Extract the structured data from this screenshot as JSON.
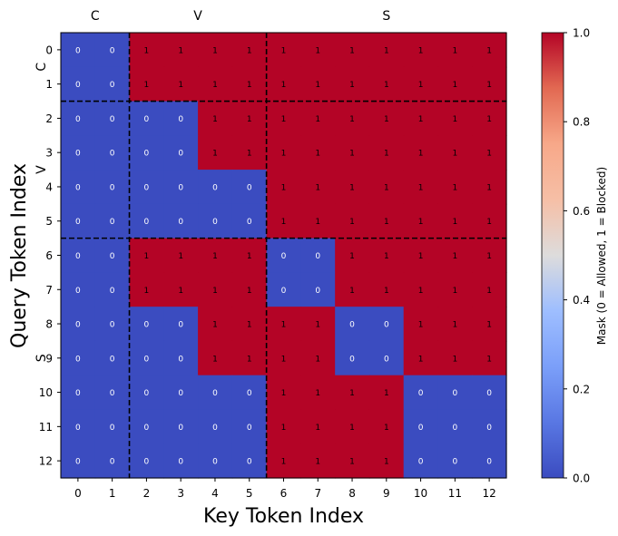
{
  "chart_data": {
    "type": "heatmap",
    "xlabel": "Key Token Index",
    "ylabel": "Query Token Index",
    "x_ticks": [
      "0",
      "1",
      "2",
      "3",
      "4",
      "5",
      "6",
      "7",
      "8",
      "9",
      "10",
      "11",
      "12"
    ],
    "y_ticks": [
      "0",
      "1",
      "2",
      "3",
      "4",
      "5",
      "6",
      "7",
      "8",
      "9",
      "10",
      "11",
      "12"
    ],
    "group_labels_top": [
      "C",
      "V",
      "S"
    ],
    "group_labels_left": [
      "C",
      "V",
      "S"
    ],
    "group_boundaries": [
      2,
      6
    ],
    "values": [
      [
        0,
        0,
        1,
        1,
        1,
        1,
        1,
        1,
        1,
        1,
        1,
        1,
        1
      ],
      [
        0,
        0,
        1,
        1,
        1,
        1,
        1,
        1,
        1,
        1,
        1,
        1,
        1
      ],
      [
        0,
        0,
        0,
        0,
        1,
        1,
        1,
        1,
        1,
        1,
        1,
        1,
        1
      ],
      [
        0,
        0,
        0,
        0,
        1,
        1,
        1,
        1,
        1,
        1,
        1,
        1,
        1
      ],
      [
        0,
        0,
        0,
        0,
        0,
        0,
        1,
        1,
        1,
        1,
        1,
        1,
        1
      ],
      [
        0,
        0,
        0,
        0,
        0,
        0,
        1,
        1,
        1,
        1,
        1,
        1,
        1
      ],
      [
        0,
        0,
        1,
        1,
        1,
        1,
        0,
        0,
        1,
        1,
        1,
        1,
        1
      ],
      [
        0,
        0,
        1,
        1,
        1,
        1,
        0,
        0,
        1,
        1,
        1,
        1,
        1
      ],
      [
        0,
        0,
        0,
        0,
        1,
        1,
        1,
        1,
        0,
        0,
        1,
        1,
        1
      ],
      [
        0,
        0,
        0,
        0,
        1,
        1,
        1,
        1,
        0,
        0,
        1,
        1,
        1
      ],
      [
        0,
        0,
        0,
        0,
        0,
        0,
        1,
        1,
        1,
        1,
        0,
        0,
        0
      ],
      [
        0,
        0,
        0,
        0,
        0,
        0,
        1,
        1,
        1,
        1,
        0,
        0,
        0
      ],
      [
        0,
        0,
        0,
        0,
        0,
        0,
        1,
        1,
        1,
        1,
        0,
        0,
        0
      ]
    ],
    "colorbar": {
      "label": "Mask (0 = Allowed, 1 = Blocked)",
      "ticks": [
        "0.0",
        "0.2",
        "0.4",
        "0.6",
        "0.8",
        "1.0"
      ],
      "range": [
        0,
        1
      ],
      "colormap": "coolwarm"
    },
    "colors": {
      "low": "#3b4cc0",
      "high": "#b40426"
    }
  }
}
